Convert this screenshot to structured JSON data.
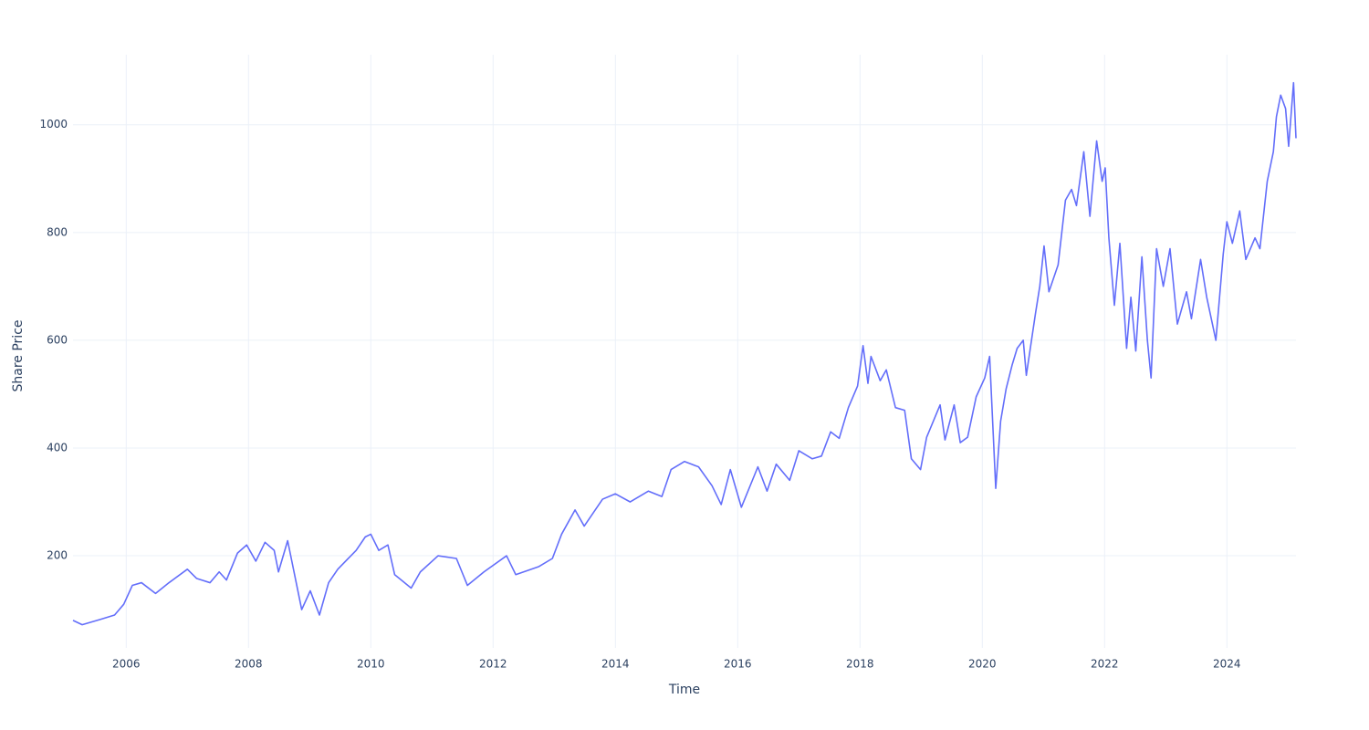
{
  "chart_data": {
    "type": "line",
    "x_label": "Time",
    "y_label": "Share Price",
    "x": [
      2005.13,
      2005.28,
      2005.58,
      2005.81,
      2005.96,
      2006.1,
      2006.25,
      2006.48,
      2006.7,
      2007.0,
      2007.15,
      2007.37,
      2007.52,
      2007.64,
      2007.82,
      2007.97,
      2008.12,
      2008.27,
      2008.42,
      2008.49,
      2008.64,
      2008.87,
      2009.01,
      2009.16,
      2009.31,
      2009.46,
      2009.76,
      2009.91,
      2010.0,
      2010.13,
      2010.28,
      2010.39,
      2010.66,
      2010.81,
      2011.1,
      2011.4,
      2011.58,
      2011.85,
      2012.22,
      2012.37,
      2012.75,
      2012.97,
      2013.12,
      2013.34,
      2013.49,
      2013.64,
      2013.79,
      2014.0,
      2014.24,
      2014.54,
      2014.76,
      2014.91,
      2015.13,
      2015.36,
      2015.58,
      2015.73,
      2015.88,
      2016.06,
      2016.33,
      2016.48,
      2016.63,
      2016.85,
      2017.0,
      2017.22,
      2017.37,
      2017.52,
      2017.66,
      2017.81,
      2017.96,
      2018.05,
      2018.13,
      2018.18,
      2018.33,
      2018.43,
      2018.58,
      2018.73,
      2018.84,
      2018.99,
      2019.09,
      2019.31,
      2019.39,
      2019.54,
      2019.64,
      2019.76,
      2019.9,
      2020.04,
      2020.12,
      2020.22,
      2020.3,
      2020.39,
      2020.49,
      2020.57,
      2020.67,
      2020.72,
      2020.87,
      2020.94,
      2021.01,
      2021.09,
      2021.24,
      2021.36,
      2021.46,
      2021.54,
      2021.66,
      2021.76,
      2021.87,
      2021.96,
      2022.01,
      2022.07,
      2022.16,
      2022.25,
      2022.36,
      2022.43,
      2022.51,
      2022.61,
      2022.7,
      2022.76,
      2022.85,
      2022.96,
      2023.07,
      2023.19,
      2023.34,
      2023.42,
      2023.57,
      2023.67,
      2023.82,
      2023.94,
      2024.0,
      2024.09,
      2024.21,
      2024.31,
      2024.46,
      2024.54,
      2024.66,
      2024.76,
      2024.81,
      2024.88,
      2024.96,
      2025.01,
      2025.09,
      2025.13
    ],
    "series": [
      {
        "color": "#636efa",
        "values": [
          80,
          72,
          82,
          90,
          110,
          145,
          150,
          130,
          150,
          175,
          158,
          150,
          170,
          155,
          205,
          220,
          190,
          225,
          210,
          170,
          228,
          100,
          135,
          90,
          150,
          175,
          210,
          235,
          240,
          210,
          220,
          165,
          140,
          170,
          200,
          195,
          145,
          170,
          200,
          165,
          180,
          195,
          240,
          285,
          255,
          280,
          305,
          315,
          300,
          320,
          310,
          360,
          375,
          365,
          330,
          295,
          360,
          290,
          365,
          320,
          370,
          340,
          395,
          380,
          385,
          430,
          418,
          475,
          515,
          590,
          520,
          570,
          525,
          545,
          475,
          470,
          380,
          360,
          420,
          480,
          415,
          480,
          410,
          420,
          495,
          530,
          570,
          325,
          450,
          510,
          555,
          585,
          600,
          535,
          650,
          700,
          775,
          690,
          740,
          860,
          880,
          850,
          950,
          830,
          970,
          895,
          920,
          790,
          665,
          780,
          585,
          680,
          580,
          755,
          600,
          530,
          770,
          700,
          770,
          630,
          690,
          640,
          750,
          680,
          600,
          760,
          820,
          780,
          840,
          750,
          790,
          770,
          895,
          950,
          1015,
          1055,
          1030,
          960,
          1078,
          975
        ]
      }
    ],
    "xlim": [
      2005.13,
      2025.13
    ],
    "xticks": [
      2006,
      2008,
      2010,
      2012,
      2014,
      2016,
      2018,
      2020,
      2022,
      2024
    ],
    "ylim": [
      29,
      1130
    ],
    "yticks": [
      200,
      400,
      600,
      800,
      1000
    ],
    "grid": true
  }
}
